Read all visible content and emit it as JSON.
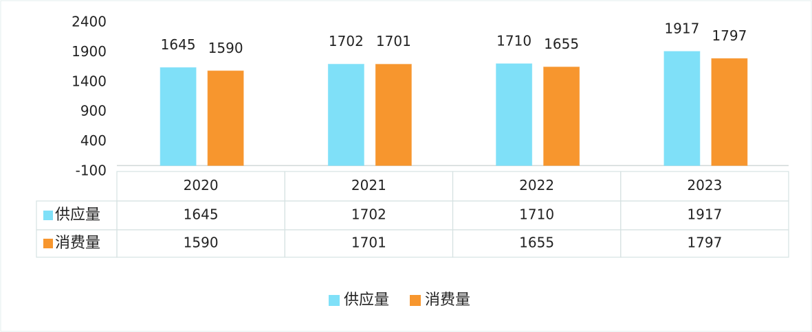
{
  "chart_data": {
    "type": "bar",
    "categories": [
      "2020",
      "2021",
      "2022",
      "2023"
    ],
    "series": [
      {
        "name": "供应量",
        "color": "#7fe0f8",
        "values": [
          1645,
          1702,
          1710,
          1917
        ]
      },
      {
        "name": "消费量",
        "color": "#f7962e",
        "values": [
          1590,
          1701,
          1655,
          1797
        ]
      }
    ],
    "ylim": [
      -100,
      2400
    ],
    "yticks": [
      -100,
      400,
      900,
      1400,
      1900,
      2400
    ],
    "grid": false
  }
}
